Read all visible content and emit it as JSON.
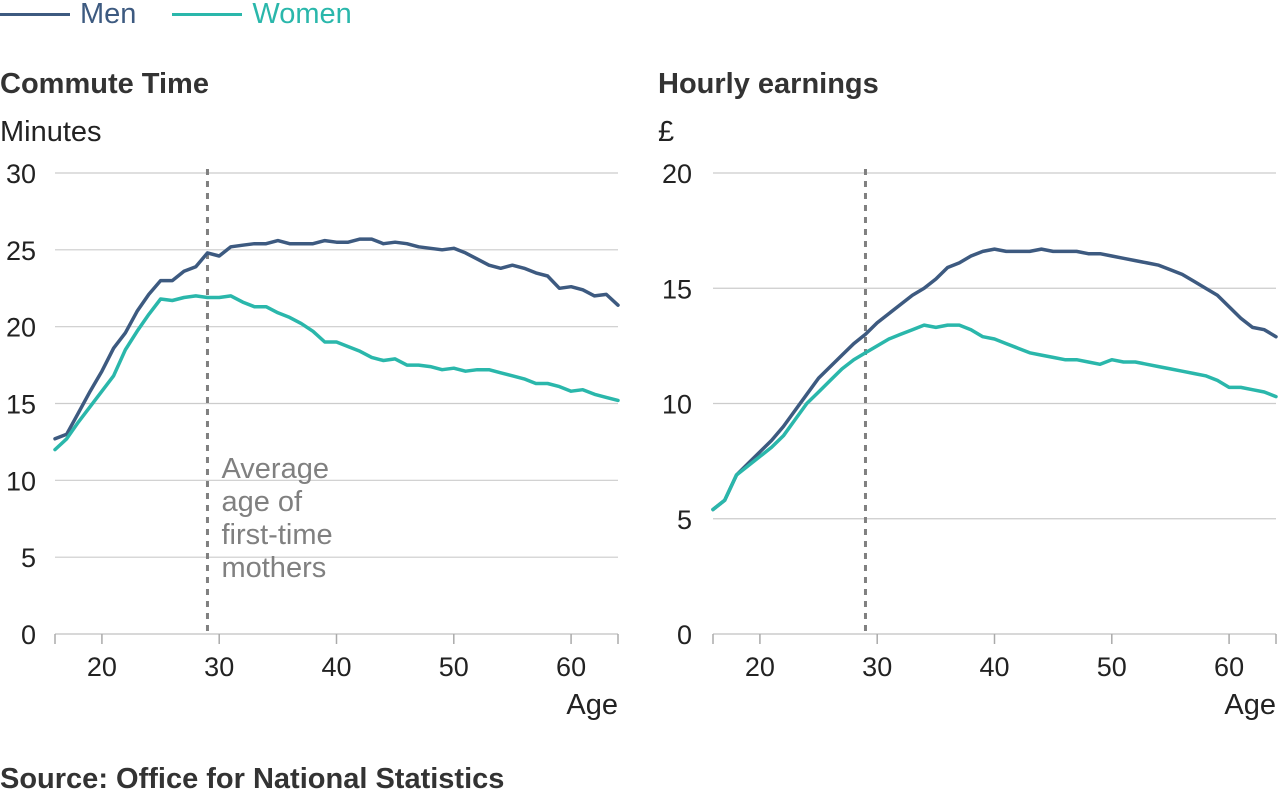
{
  "legend": [
    {
      "label": "Men",
      "color": "#3d5a80"
    },
    {
      "label": "Women",
      "color": "#2ab7ab"
    }
  ],
  "source": "Source: Office for National Statistics",
  "annotation_color": "#808080",
  "chart_data": [
    {
      "type": "line",
      "title": "Commute Time",
      "ylabel": "Minutes",
      "xlabel": "Age",
      "xlim": [
        16,
        64
      ],
      "ylim": [
        0,
        30
      ],
      "xticks": [
        20,
        30,
        40,
        50,
        60
      ],
      "yticks": [
        0,
        5,
        10,
        15,
        20,
        25,
        30
      ],
      "grid": true,
      "marker": {
        "x": 29,
        "label": [
          "Average",
          "age of",
          "first-time",
          "mothers"
        ]
      },
      "x": [
        16,
        17,
        18,
        19,
        20,
        21,
        22,
        23,
        24,
        25,
        26,
        27,
        28,
        29,
        30,
        31,
        32,
        33,
        34,
        35,
        36,
        37,
        38,
        39,
        40,
        41,
        42,
        43,
        44,
        45,
        46,
        47,
        48,
        49,
        50,
        51,
        52,
        53,
        54,
        55,
        56,
        57,
        58,
        59,
        60,
        61,
        62,
        63,
        64
      ],
      "series": [
        {
          "name": "Men",
          "color": "#3d5a80",
          "values": [
            12.7,
            13.0,
            14.4,
            15.8,
            17.1,
            18.6,
            19.6,
            21.0,
            22.1,
            23.0,
            23.0,
            23.6,
            23.9,
            24.8,
            24.6,
            25.2,
            25.3,
            25.4,
            25.4,
            25.6,
            25.4,
            25.4,
            25.4,
            25.6,
            25.5,
            25.5,
            25.7,
            25.7,
            25.4,
            25.5,
            25.4,
            25.2,
            25.1,
            25.0,
            25.1,
            24.8,
            24.4,
            24.0,
            23.8,
            24.0,
            23.8,
            23.5,
            23.3,
            22.5,
            22.6,
            22.4,
            22.0,
            22.1,
            21.4
          ]
        },
        {
          "name": "Women",
          "color": "#2ab7ab",
          "values": [
            12.0,
            12.7,
            13.8,
            14.8,
            15.8,
            16.8,
            18.5,
            19.7,
            20.8,
            21.8,
            21.7,
            21.9,
            22.0,
            21.9,
            21.9,
            22.0,
            21.6,
            21.3,
            21.3,
            20.9,
            20.6,
            20.2,
            19.7,
            19.0,
            19.0,
            18.7,
            18.4,
            18.0,
            17.8,
            17.9,
            17.5,
            17.5,
            17.4,
            17.2,
            17.3,
            17.1,
            17.2,
            17.2,
            17.0,
            16.8,
            16.6,
            16.3,
            16.3,
            16.1,
            15.8,
            15.9,
            15.6,
            15.4,
            15.2
          ]
        }
      ]
    },
    {
      "type": "line",
      "title": "Hourly earnings",
      "ylabel": "£",
      "xlabel": "Age",
      "xlim": [
        16,
        64
      ],
      "ylim": [
        0,
        20
      ],
      "xticks": [
        20,
        30,
        40,
        50,
        60
      ],
      "yticks": [
        0,
        5,
        10,
        15,
        20
      ],
      "grid": true,
      "marker": {
        "x": 29
      },
      "x": [
        16,
        17,
        18,
        19,
        20,
        21,
        22,
        23,
        24,
        25,
        26,
        27,
        28,
        29,
        30,
        31,
        32,
        33,
        34,
        35,
        36,
        37,
        38,
        39,
        40,
        41,
        42,
        43,
        44,
        45,
        46,
        47,
        48,
        49,
        50,
        51,
        52,
        53,
        54,
        55,
        56,
        57,
        58,
        59,
        60,
        61,
        62,
        63,
        64
      ],
      "series": [
        {
          "name": "Men",
          "color": "#3d5a80",
          "values": [
            5.4,
            5.8,
            6.9,
            7.4,
            7.9,
            8.4,
            9.0,
            9.7,
            10.4,
            11.1,
            11.6,
            12.1,
            12.6,
            13.0,
            13.5,
            13.9,
            14.3,
            14.7,
            15.0,
            15.4,
            15.9,
            16.1,
            16.4,
            16.6,
            16.7,
            16.6,
            16.6,
            16.6,
            16.7,
            16.6,
            16.6,
            16.6,
            16.5,
            16.5,
            16.4,
            16.3,
            16.2,
            16.1,
            16.0,
            15.8,
            15.6,
            15.3,
            15.0,
            14.7,
            14.2,
            13.7,
            13.3,
            13.2,
            12.9
          ]
        },
        {
          "name": "Women",
          "color": "#2ab7ab",
          "values": [
            5.4,
            5.8,
            6.9,
            7.3,
            7.7,
            8.1,
            8.6,
            9.3,
            10.0,
            10.5,
            11.0,
            11.5,
            11.9,
            12.2,
            12.5,
            12.8,
            13.0,
            13.2,
            13.4,
            13.3,
            13.4,
            13.4,
            13.2,
            12.9,
            12.8,
            12.6,
            12.4,
            12.2,
            12.1,
            12.0,
            11.9,
            11.9,
            11.8,
            11.7,
            11.9,
            11.8,
            11.8,
            11.7,
            11.6,
            11.5,
            11.4,
            11.3,
            11.2,
            11.0,
            10.7,
            10.7,
            10.6,
            10.5,
            10.3
          ]
        }
      ]
    }
  ]
}
